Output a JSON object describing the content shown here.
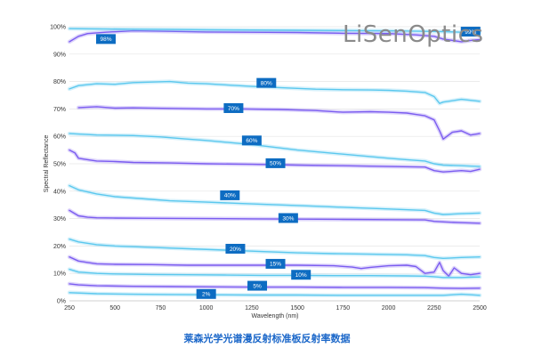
{
  "caption": "莱森光学光谱漫反射标准板反射率数据",
  "logo": {
    "text": "LiSenOptics",
    "color": "#8a8a8a"
  },
  "colors": {
    "line_dark": "#7b5cf0",
    "line_light": "#5bc8ee",
    "tag_bg": "#0d6cc2",
    "grid": "#e6e6e6",
    "axis": "#c8c8c8"
  },
  "chart_data": {
    "type": "line",
    "xlabel": "Wavelength (nm)",
    "ylabel": "Spectral Reflectance",
    "xlim": [
      250,
      2500
    ],
    "ylim": [
      0,
      100
    ],
    "xticks": [
      250,
      500,
      750,
      1000,
      1250,
      1500,
      1750,
      2000,
      2250,
      2500
    ],
    "yticks": [
      0,
      10,
      20,
      30,
      40,
      50,
      60,
      70,
      80,
      90,
      100
    ],
    "ytick_labels": [
      "0%",
      "10%",
      "20%",
      "30%",
      "40%",
      "50%",
      "60%",
      "70%",
      "80%",
      "90%",
      "100%"
    ],
    "grid": true,
    "series": [
      {
        "name": "98%",
        "color": "dark",
        "label_x": 450,
        "label_y": 95.5,
        "x": [
          250,
          300,
          350,
          450,
          600,
          800,
          1000,
          1250,
          1500,
          1750,
          2000,
          2150,
          2250,
          2300,
          2400,
          2450,
          2500
        ],
        "y": [
          94.5,
          96.5,
          97.5,
          98.0,
          98.5,
          98.3,
          98.1,
          98.0,
          97.9,
          97.6,
          97.5,
          97.0,
          96.5,
          95.5,
          94.5,
          95.0,
          95.3
        ]
      },
      {
        "name": "99%",
        "color": "light",
        "label_x": 2450,
        "label_y": 98.2,
        "x": [
          250,
          400,
          600,
          800,
          1000,
          1250,
          1500,
          1750,
          2000,
          2200,
          2300,
          2400,
          2500
        ],
        "y": [
          99.3,
          99.2,
          99.1,
          99.0,
          98.9,
          98.8,
          98.7,
          98.6,
          98.5,
          98.3,
          98.2,
          98.0,
          97.9
        ]
      },
      {
        "name": "80%",
        "color": "light",
        "label_x": 1330,
        "label_y": 79.5,
        "x": [
          250,
          300,
          400,
          500,
          600,
          700,
          800,
          900,
          1000,
          1100,
          1250,
          1400,
          1500,
          1600,
          1750,
          1900,
          2000,
          2100,
          2200,
          2250,
          2280,
          2300,
          2400,
          2500
        ],
        "y": [
          77.3,
          78.5,
          79.2,
          79.0,
          79.6,
          79.8,
          80.0,
          79.4,
          79.2,
          78.8,
          78.2,
          77.8,
          77.5,
          77.2,
          77.0,
          76.9,
          76.8,
          76.5,
          76.0,
          74.5,
          72.0,
          72.5,
          73.5,
          72.8
        ]
      },
      {
        "name": "70%",
        "color": "dark",
        "label_x": 1150,
        "label_y": 70.3,
        "x": [
          300,
          400,
          500,
          600,
          800,
          1000,
          1200,
          1400,
          1500,
          1600,
          1750,
          1900,
          2000,
          2100,
          2150,
          2200,
          2250,
          2280,
          2300,
          2350,
          2400,
          2450,
          2500
        ],
        "y": [
          70.5,
          70.8,
          70.3,
          70.4,
          70.2,
          70.0,
          70.0,
          69.8,
          69.6,
          69.4,
          68.8,
          69.0,
          68.8,
          68.5,
          68.0,
          67.5,
          66.0,
          62.0,
          59.0,
          61.5,
          62.0,
          60.5,
          61.0
        ]
      },
      {
        "name": "60%",
        "color": "light",
        "label_x": 1250,
        "label_y": 58.5,
        "x": [
          250,
          400,
          600,
          750,
          900,
          1000,
          1250,
          1500,
          1750,
          2000,
          2100,
          2200,
          2250,
          2300,
          2400,
          2500
        ],
        "y": [
          61.0,
          60.5,
          60.3,
          59.8,
          59.0,
          58.5,
          57.0,
          55.0,
          53.5,
          52.0,
          51.5,
          51.0,
          50.0,
          49.5,
          49.3,
          49.0
        ]
      },
      {
        "name": "50%",
        "color": "dark",
        "label_x": 1380,
        "label_y": 50.2,
        "x": [
          250,
          280,
          300,
          350,
          400,
          500,
          600,
          800,
          1000,
          1250,
          1500,
          1750,
          2000,
          2200,
          2250,
          2300,
          2400,
          2450,
          2500
        ],
        "y": [
          55.0,
          54.0,
          52.0,
          51.5,
          51.0,
          50.8,
          50.5,
          50.3,
          50.0,
          49.8,
          49.5,
          49.3,
          49.0,
          48.8,
          47.5,
          47.0,
          47.5,
          47.2,
          48.0
        ]
      },
      {
        "name": "40%",
        "color": "light",
        "label_x": 1130,
        "label_y": 38.5,
        "x": [
          250,
          300,
          400,
          500,
          600,
          700,
          800,
          1000,
          1200,
          1400,
          1600,
          1800,
          2000,
          2200,
          2250,
          2300,
          2400,
          2500
        ],
        "y": [
          42.0,
          40.5,
          39.0,
          38.0,
          37.5,
          37.0,
          36.5,
          36.0,
          35.5,
          35.0,
          34.5,
          34.0,
          33.5,
          33.0,
          32.0,
          31.5,
          31.8,
          32.0
        ]
      },
      {
        "name": "30%",
        "color": "dark",
        "label_x": 1450,
        "label_y": 30.2,
        "x": [
          250,
          300,
          350,
          400,
          500,
          700,
          1000,
          1250,
          1500,
          1750,
          2000,
          2200,
          2250,
          2300,
          2400,
          2500
        ],
        "y": [
          33.0,
          31.0,
          30.5,
          30.3,
          30.2,
          30.1,
          30.0,
          29.9,
          29.8,
          29.7,
          29.6,
          29.5,
          29.0,
          28.8,
          28.5,
          28.3
        ]
      },
      {
        "name": "20%",
        "color": "light",
        "label_x": 1160,
        "label_y": 19.0,
        "x": [
          250,
          300,
          400,
          500,
          700,
          900,
          1100,
          1300,
          1500,
          1700,
          1900,
          2100,
          2200,
          2250,
          2300,
          2400,
          2500
        ],
        "y": [
          22.5,
          21.5,
          20.5,
          20.0,
          19.5,
          19.0,
          18.5,
          18.0,
          17.5,
          17.2,
          17.0,
          16.8,
          16.5,
          15.8,
          15.5,
          15.8,
          16.0
        ]
      },
      {
        "name": "15%",
        "color": "dark",
        "label_x": 1380,
        "label_y": 13.5,
        "x": [
          250,
          300,
          350,
          400,
          500,
          700,
          900,
          1100,
          1300,
          1500,
          1700,
          1800,
          1850,
          1900,
          2000,
          2100,
          2150,
          2200,
          2250,
          2280,
          2300,
          2330,
          2360,
          2400,
          2450,
          2500
        ],
        "y": [
          16.0,
          14.5,
          14.0,
          13.5,
          13.3,
          13.2,
          13.0,
          13.0,
          13.0,
          13.0,
          12.8,
          12.3,
          11.8,
          12.2,
          12.8,
          13.0,
          12.5,
          10.0,
          10.5,
          14.0,
          11.0,
          9.0,
          12.0,
          10.0,
          9.5,
          10.0
        ]
      },
      {
        "name": "10%",
        "color": "light",
        "label_x": 1520,
        "label_y": 9.5,
        "x": [
          250,
          300,
          400,
          500,
          700,
          900,
          1100,
          1300,
          1500,
          1700,
          1900,
          2100,
          2200,
          2250,
          2300,
          2400,
          2500
        ],
        "y": [
          11.5,
          10.5,
          10.0,
          9.8,
          9.6,
          9.5,
          9.4,
          9.3,
          9.3,
          9.2,
          9.2,
          9.1,
          9.0,
          8.8,
          8.5,
          8.5,
          8.7
        ]
      },
      {
        "name": "5%",
        "color": "dark",
        "label_x": 1280,
        "label_y": 5.5,
        "x": [
          250,
          300,
          400,
          600,
          800,
          1000,
          1250,
          1500,
          1750,
          2000,
          2200,
          2300,
          2400,
          2500
        ],
        "y": [
          6.2,
          5.8,
          5.5,
          5.3,
          5.2,
          5.1,
          5.0,
          5.0,
          4.9,
          4.9,
          4.8,
          4.6,
          4.5,
          4.6
        ]
      },
      {
        "name": "2%",
        "color": "light",
        "label_x": 1000,
        "label_y": 2.5,
        "x": [
          250,
          400,
          600,
          800,
          1000,
          1250,
          1500,
          1750,
          2000,
          2200,
          2300,
          2400,
          2500
        ],
        "y": [
          3.0,
          2.6,
          2.4,
          2.3,
          2.2,
          2.1,
          2.1,
          2.0,
          2.0,
          2.0,
          2.0,
          2.4,
          2.0
        ]
      }
    ]
  }
}
